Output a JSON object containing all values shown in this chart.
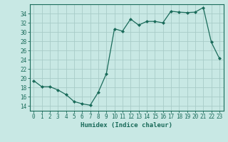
{
  "x": [
    0,
    1,
    2,
    3,
    4,
    5,
    6,
    7,
    8,
    9,
    10,
    11,
    12,
    13,
    14,
    15,
    16,
    17,
    18,
    19,
    20,
    21,
    22,
    23
  ],
  "y": [
    19.5,
    18.2,
    18.2,
    17.5,
    16.5,
    15.0,
    14.5,
    14.2,
    17.0,
    21.0,
    30.7,
    30.2,
    32.8,
    31.5,
    32.3,
    32.3,
    32.0,
    34.5,
    34.3,
    34.2,
    34.3,
    35.3,
    27.8,
    24.3
  ],
  "line_color": "#1a6b5a",
  "marker": "D",
  "marker_size": 2,
  "bg_color": "#c8e8e4",
  "grid_color": "#a8ccc8",
  "xlabel": "Humidex (Indice chaleur)",
  "xlim": [
    -0.5,
    23.5
  ],
  "ylim": [
    13,
    36
  ],
  "yticks": [
    14,
    16,
    18,
    20,
    22,
    24,
    26,
    28,
    30,
    32,
    34
  ],
  "xticks": [
    0,
    1,
    2,
    3,
    4,
    5,
    6,
    7,
    8,
    9,
    10,
    11,
    12,
    13,
    14,
    15,
    16,
    17,
    18,
    19,
    20,
    21,
    22,
    23
  ],
  "tick_color": "#1a6b5a",
  "tick_labelsize": 5.5,
  "xlabel_fontsize": 6.5,
  "spine_color": "#1a6b5a",
  "linewidth": 0.9
}
